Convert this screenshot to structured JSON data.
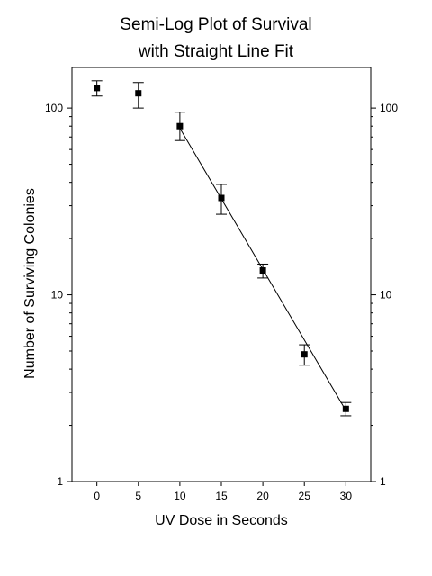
{
  "chart_data": {
    "type": "scatter",
    "title": [
      "Semi-Log Plot of Survival",
      "with Straight Line Fit"
    ],
    "xlabel": "UV Dose in Seconds",
    "ylabel": "Number of Surviving Colonies",
    "x_scale": "linear",
    "y_scale": "log",
    "xlim": [
      -3,
      33
    ],
    "ylim": [
      1,
      165
    ],
    "x_ticks": [
      0,
      5,
      10,
      15,
      20,
      25,
      30
    ],
    "x_tick_labels": [
      "0",
      "5",
      "10",
      "15",
      "20",
      "25",
      "30"
    ],
    "y_ticks": [
      1,
      10,
      100
    ],
    "y_tick_labels": [
      "1",
      "10",
      "100"
    ],
    "y_tick_labels_right": [
      "1",
      "10",
      "100"
    ],
    "grid": false,
    "legend": "none",
    "series": [
      {
        "type": "scatter",
        "x": [
          0,
          5,
          10,
          15,
          20,
          25,
          30
        ],
        "y": [
          128,
          120,
          80,
          33,
          13.5,
          4.8,
          2.45
        ],
        "y_err_low": [
          116,
          100,
          67,
          27,
          12.3,
          4.2,
          2.25
        ],
        "y_err_high": [
          140,
          137,
          95,
          39,
          14.6,
          5.4,
          2.65
        ],
        "color": "#000000"
      },
      {
        "type": "line",
        "x": [
          10,
          30
        ],
        "y": [
          78,
          2.4
        ],
        "color": "#000000"
      }
    ]
  }
}
